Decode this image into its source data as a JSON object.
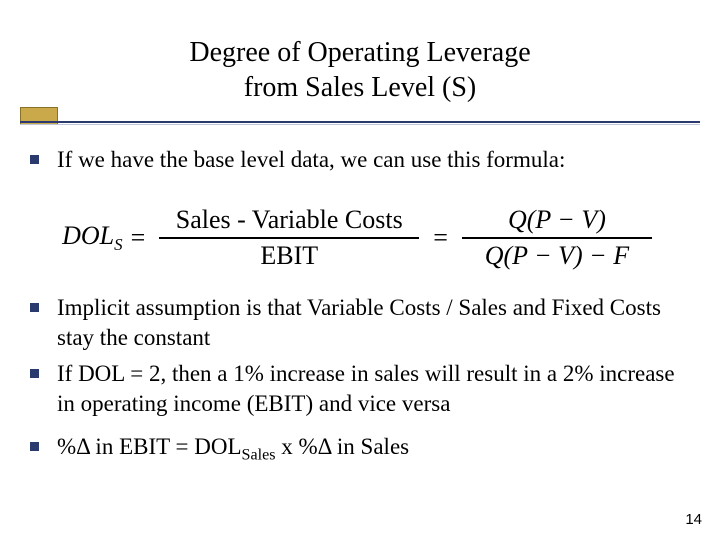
{
  "title": {
    "line1": "Degree of Operating Leverage",
    "line2": "from Sales Level (S)"
  },
  "bullets": {
    "b1": "If we have the base level data, we can use this formula:",
    "b2": "Implicit assumption is that Variable Costs / Sales and Fixed Costs stay the constant",
    "b3": "If DOL = 2,  then a 1% increase in sales will result in a 2% increase in operating income (EBIT) and vice versa",
    "b4_pre": "%Δ in EBIT = DOL",
    "b4_sub": "Sales",
    "b4_post": " x %Δ in Sales"
  },
  "formula": {
    "lhs": "DOL",
    "lhs_sub": "S",
    "frac1_num": "Sales - Variable Costs",
    "frac1_den": "EBIT",
    "frac2_num": "Q(P − V)",
    "frac2_den": "Q(P − V) − F"
  },
  "page_number": "14",
  "colors": {
    "accent_box": "#c9a94a",
    "rule_dark": "#2b3a6e",
    "rule_light": "#bfc6db",
    "bullet": "#2b3a6e"
  }
}
